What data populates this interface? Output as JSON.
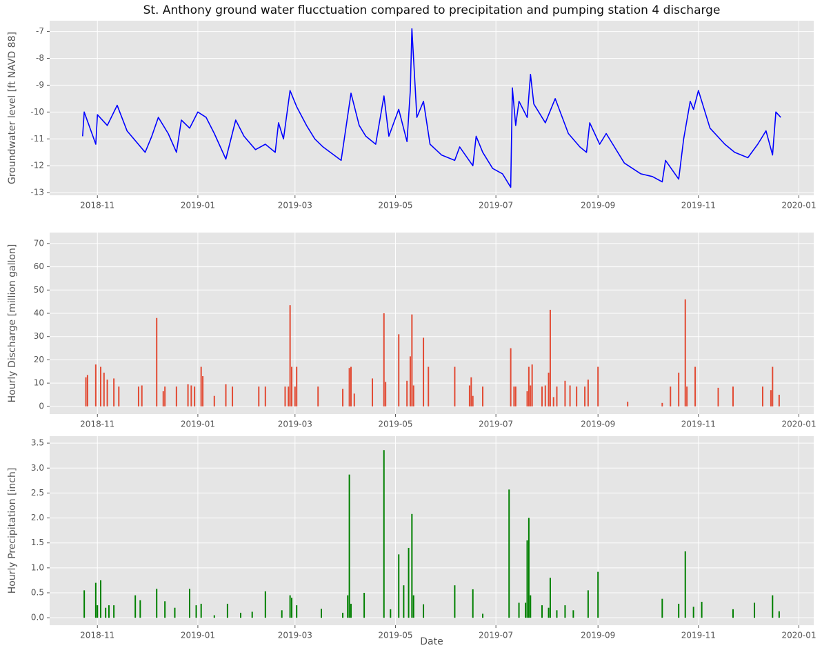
{
  "chart_data": [
    {
      "type": "line",
      "title": "St. Anthony ground water flucctuation compared to precipitation and pumping station 4 discharge",
      "ylabel": "Groundwater level [ft NAVD 88]",
      "color": "#0000ff",
      "x": [
        "2018-10-23",
        "2018-10-24",
        "2018-10-31",
        "2018-11-01",
        "2018-11-07",
        "2018-11-13",
        "2018-11-19",
        "2018-11-30",
        "2018-12-04",
        "2018-12-08",
        "2018-12-14",
        "2018-12-19",
        "2018-12-22",
        "2018-12-27",
        "2019-01-01",
        "2019-01-06",
        "2019-01-11",
        "2019-01-18",
        "2019-01-24",
        "2019-01-29",
        "2019-02-05",
        "2019-02-11",
        "2019-02-17",
        "2019-02-19",
        "2019-02-22",
        "2019-02-26",
        "2019-03-02",
        "2019-03-08",
        "2019-03-13",
        "2019-03-18",
        "2019-03-29",
        "2019-04-04",
        "2019-04-09",
        "2019-04-13",
        "2019-04-19",
        "2019-04-24",
        "2019-04-27",
        "2019-05-03",
        "2019-05-08",
        "2019-05-10",
        "2019-05-11",
        "2019-05-14",
        "2019-05-18",
        "2019-05-22",
        "2019-05-29",
        "2019-06-06",
        "2019-06-09",
        "2019-06-17",
        "2019-06-19",
        "2019-06-23",
        "2019-06-29",
        "2019-07-05",
        "2019-07-10",
        "2019-07-11",
        "2019-07-13",
        "2019-07-15",
        "2019-07-20",
        "2019-07-22",
        "2019-07-24",
        "2019-07-31",
        "2019-08-06",
        "2019-08-14",
        "2019-08-21",
        "2019-08-25",
        "2019-08-27",
        "2019-09-02",
        "2019-09-06",
        "2019-09-17",
        "2019-09-27",
        "2019-10-04",
        "2019-10-10",
        "2019-10-12",
        "2019-10-20",
        "2019-10-23",
        "2019-10-27",
        "2019-10-29",
        "2019-11-01",
        "2019-11-08",
        "2019-11-17",
        "2019-11-23",
        "2019-12-01",
        "2019-12-07",
        "2019-12-12",
        "2019-12-16",
        "2019-12-18",
        "2019-12-21"
      ],
      "values": [
        -10.9,
        -10.0,
        -11.2,
        -10.1,
        -10.5,
        -9.75,
        -10.7,
        -11.5,
        -10.9,
        -10.2,
        -10.8,
        -11.5,
        -10.3,
        -10.6,
        -10.0,
        -10.2,
        -10.8,
        -11.75,
        -10.3,
        -10.9,
        -11.4,
        -11.2,
        -11.5,
        -10.4,
        -11.0,
        -9.2,
        -9.8,
        -10.5,
        -11.0,
        -11.3,
        -11.8,
        -9.3,
        -10.5,
        -10.9,
        -11.2,
        -9.4,
        -10.9,
        -9.9,
        -11.1,
        -9.2,
        -6.9,
        -10.2,
        -9.6,
        -11.2,
        -11.6,
        -11.8,
        -11.3,
        -12.0,
        -10.9,
        -11.5,
        -12.1,
        -12.3,
        -12.8,
        -9.1,
        -10.5,
        -9.6,
        -10.2,
        -8.6,
        -9.7,
        -10.4,
        -9.5,
        -10.8,
        -11.3,
        -11.5,
        -10.4,
        -11.2,
        -10.8,
        -11.9,
        -12.3,
        -12.4,
        -12.6,
        -11.8,
        -12.5,
        -11.0,
        -9.6,
        -9.9,
        -9.2,
        -10.6,
        -11.2,
        -11.5,
        -11.7,
        -11.2,
        -10.7,
        -11.6,
        -10.0,
        -10.2
      ],
      "xlim": [
        "2018-10-03",
        "2020-01-10"
      ],
      "ylim": [
        -13.1,
        -6.6
      ],
      "xticks": [
        {
          "value": "2018-11-01",
          "label": "2018-11"
        },
        {
          "value": "2019-01-01",
          "label": "2019-01"
        },
        {
          "value": "2019-03-01",
          "label": "2019-03"
        },
        {
          "value": "2019-05-01",
          "label": "2019-05"
        },
        {
          "value": "2019-07-01",
          "label": "2019-07"
        },
        {
          "value": "2019-09-01",
          "label": "2019-09"
        },
        {
          "value": "2019-11-01",
          "label": "2019-11"
        },
        {
          "value": "2020-01-01",
          "label": "2020-01"
        }
      ],
      "yticks": [
        -13,
        -12,
        -11,
        -10,
        -9,
        -8,
        -7
      ],
      "grid": true
    },
    {
      "type": "bar",
      "ylabel": "Hourly Discharge [million gallon]",
      "color": "#e24a33",
      "x": [
        "2018-10-25",
        "2018-10-26",
        "2018-10-31",
        "2018-11-03",
        "2018-11-05",
        "2018-11-07",
        "2018-11-11",
        "2018-11-14",
        "2018-11-26",
        "2018-11-28",
        "2018-12-07",
        "2018-12-11",
        "2018-12-12",
        "2018-12-19",
        "2018-12-26",
        "2018-12-28",
        "2018-12-30",
        "2019-01-03",
        "2019-01-04",
        "2019-01-11",
        "2019-01-18",
        "2019-01-22",
        "2019-02-07",
        "2019-02-11",
        "2019-02-23",
        "2019-02-25",
        "2019-02-26",
        "2019-02-27",
        "2019-03-01",
        "2019-03-02",
        "2019-03-15",
        "2019-03-30",
        "2019-04-03",
        "2019-04-04",
        "2019-04-06",
        "2019-04-17",
        "2019-04-24",
        "2019-04-25",
        "2019-05-03",
        "2019-05-08",
        "2019-05-10",
        "2019-05-11",
        "2019-05-12",
        "2019-05-18",
        "2019-05-21",
        "2019-06-06",
        "2019-06-15",
        "2019-06-16",
        "2019-06-17",
        "2019-06-23",
        "2019-07-10",
        "2019-07-12",
        "2019-07-13",
        "2019-07-20",
        "2019-07-21",
        "2019-07-22",
        "2019-07-23",
        "2019-07-29",
        "2019-07-31",
        "2019-08-02",
        "2019-08-03",
        "2019-08-05",
        "2019-08-07",
        "2019-08-12",
        "2019-08-15",
        "2019-08-19",
        "2019-08-24",
        "2019-08-26",
        "2019-09-01",
        "2019-09-19",
        "2019-10-10",
        "2019-10-15",
        "2019-10-20",
        "2019-10-24",
        "2019-10-25",
        "2019-10-30",
        "2019-11-13",
        "2019-11-22",
        "2019-12-10",
        "2019-12-15",
        "2019-12-16",
        "2019-12-20"
      ],
      "values": [
        12.5,
        13.5,
        18,
        17,
        14.5,
        11.5,
        12,
        8.5,
        8.5,
        9,
        38,
        6.5,
        8.5,
        8.5,
        9.5,
        9,
        8.5,
        17,
        13,
        4.5,
        9.5,
        8.5,
        8.5,
        8.5,
        8.5,
        8.5,
        43.5,
        17,
        8.5,
        17,
        8.5,
        7.5,
        16.5,
        17,
        5.5,
        12,
        40,
        10.5,
        31,
        11,
        21.5,
        39.5,
        9,
        29.5,
        17,
        17,
        9,
        12.5,
        4.5,
        8.5,
        25,
        8.5,
        8.5,
        6.5,
        17,
        9,
        18,
        8.5,
        9,
        14.5,
        41.5,
        4,
        8.5,
        11,
        9,
        8.5,
        8.5,
        11.5,
        17,
        2,
        1.5,
        8.5,
        14.5,
        46,
        8.5,
        17,
        8,
        8.5,
        8.5,
        7,
        17,
        5
      ],
      "xlim": [
        "2018-10-03",
        "2020-01-10"
      ],
      "ylim": [
        -3.3,
        74.7
      ],
      "xticks": [
        {
          "value": "2018-11-01",
          "label": "2018-11"
        },
        {
          "value": "2019-01-01",
          "label": "2019-01"
        },
        {
          "value": "2019-03-01",
          "label": "2019-03"
        },
        {
          "value": "2019-05-01",
          "label": "2019-05"
        },
        {
          "value": "2019-07-01",
          "label": "2019-07"
        },
        {
          "value": "2019-09-01",
          "label": "2019-09"
        },
        {
          "value": "2019-11-01",
          "label": "2019-11"
        },
        {
          "value": "2020-01-01",
          "label": "2020-01"
        }
      ],
      "yticks": [
        0,
        10,
        20,
        30,
        40,
        50,
        60,
        70
      ],
      "grid": true
    },
    {
      "type": "bar",
      "ylabel": "Hourly Precipitation [inch]",
      "xlabel": "Date",
      "color": "#008000",
      "x": [
        "2018-10-24",
        "2018-10-31",
        "2018-11-01",
        "2018-11-03",
        "2018-11-06",
        "2018-11-08",
        "2018-11-11",
        "2018-11-24",
        "2018-11-27",
        "2018-12-07",
        "2018-12-12",
        "2018-12-18",
        "2018-12-27",
        "2018-12-31",
        "2019-01-03",
        "2019-01-11",
        "2019-01-19",
        "2019-01-27",
        "2019-02-03",
        "2019-02-11",
        "2019-02-21",
        "2019-02-26",
        "2019-02-27",
        "2019-03-02",
        "2019-03-17",
        "2019-03-30",
        "2019-04-02",
        "2019-04-03",
        "2019-04-04",
        "2019-04-12",
        "2019-04-24",
        "2019-04-28",
        "2019-05-03",
        "2019-05-06",
        "2019-05-09",
        "2019-05-11",
        "2019-05-12",
        "2019-05-18",
        "2019-06-06",
        "2019-06-17",
        "2019-06-23",
        "2019-07-09",
        "2019-07-15",
        "2019-07-19",
        "2019-07-20",
        "2019-07-21",
        "2019-07-22",
        "2019-07-29",
        "2019-08-02",
        "2019-08-03",
        "2019-08-07",
        "2019-08-12",
        "2019-08-17",
        "2019-08-26",
        "2019-09-01",
        "2019-10-10",
        "2019-10-20",
        "2019-10-24",
        "2019-10-29",
        "2019-11-03",
        "2019-11-22",
        "2019-12-05",
        "2019-12-16",
        "2019-12-20"
      ],
      "values": [
        0.55,
        0.7,
        0.25,
        0.75,
        0.2,
        0.25,
        0.25,
        0.45,
        0.35,
        0.58,
        0.33,
        0.2,
        0.58,
        0.25,
        0.28,
        0.05,
        0.28,
        0.1,
        0.12,
        0.53,
        0.15,
        0.45,
        0.4,
        0.25,
        0.18,
        0.1,
        0.45,
        2.87,
        0.28,
        0.5,
        3.36,
        0.17,
        1.27,
        0.65,
        1.4,
        2.08,
        0.45,
        0.27,
        0.65,
        0.57,
        0.08,
        2.57,
        0.3,
        0.3,
        1.55,
        2.0,
        0.45,
        0.25,
        0.2,
        0.8,
        0.15,
        0.25,
        0.15,
        0.55,
        0.92,
        0.38,
        0.28,
        1.33,
        0.22,
        0.32,
        0.17,
        0.3,
        0.45,
        0.13
      ],
      "xlim": [
        "2018-10-03",
        "2020-01-10"
      ],
      "ylim": [
        -0.15,
        3.64
      ],
      "xticks": [
        {
          "value": "2018-11-01",
          "label": "2018-11"
        },
        {
          "value": "2019-01-01",
          "label": "2019-01"
        },
        {
          "value": "2019-03-01",
          "label": "2019-03"
        },
        {
          "value": "2019-05-01",
          "label": "2019-05"
        },
        {
          "value": "2019-07-01",
          "label": "2019-07"
        },
        {
          "value": "2019-09-01",
          "label": "2019-09"
        },
        {
          "value": "2019-11-01",
          "label": "2019-11"
        },
        {
          "value": "2020-01-01",
          "label": "2020-01"
        }
      ],
      "yticks": [
        {
          "value": 0,
          "label": "0.0"
        },
        0.5,
        {
          "value": 1,
          "label": "1.0"
        },
        1.5,
        {
          "value": 2,
          "label": "2.0"
        },
        2.5,
        {
          "value": 3,
          "label": "3.0"
        },
        3.5
      ],
      "grid": true
    }
  ]
}
